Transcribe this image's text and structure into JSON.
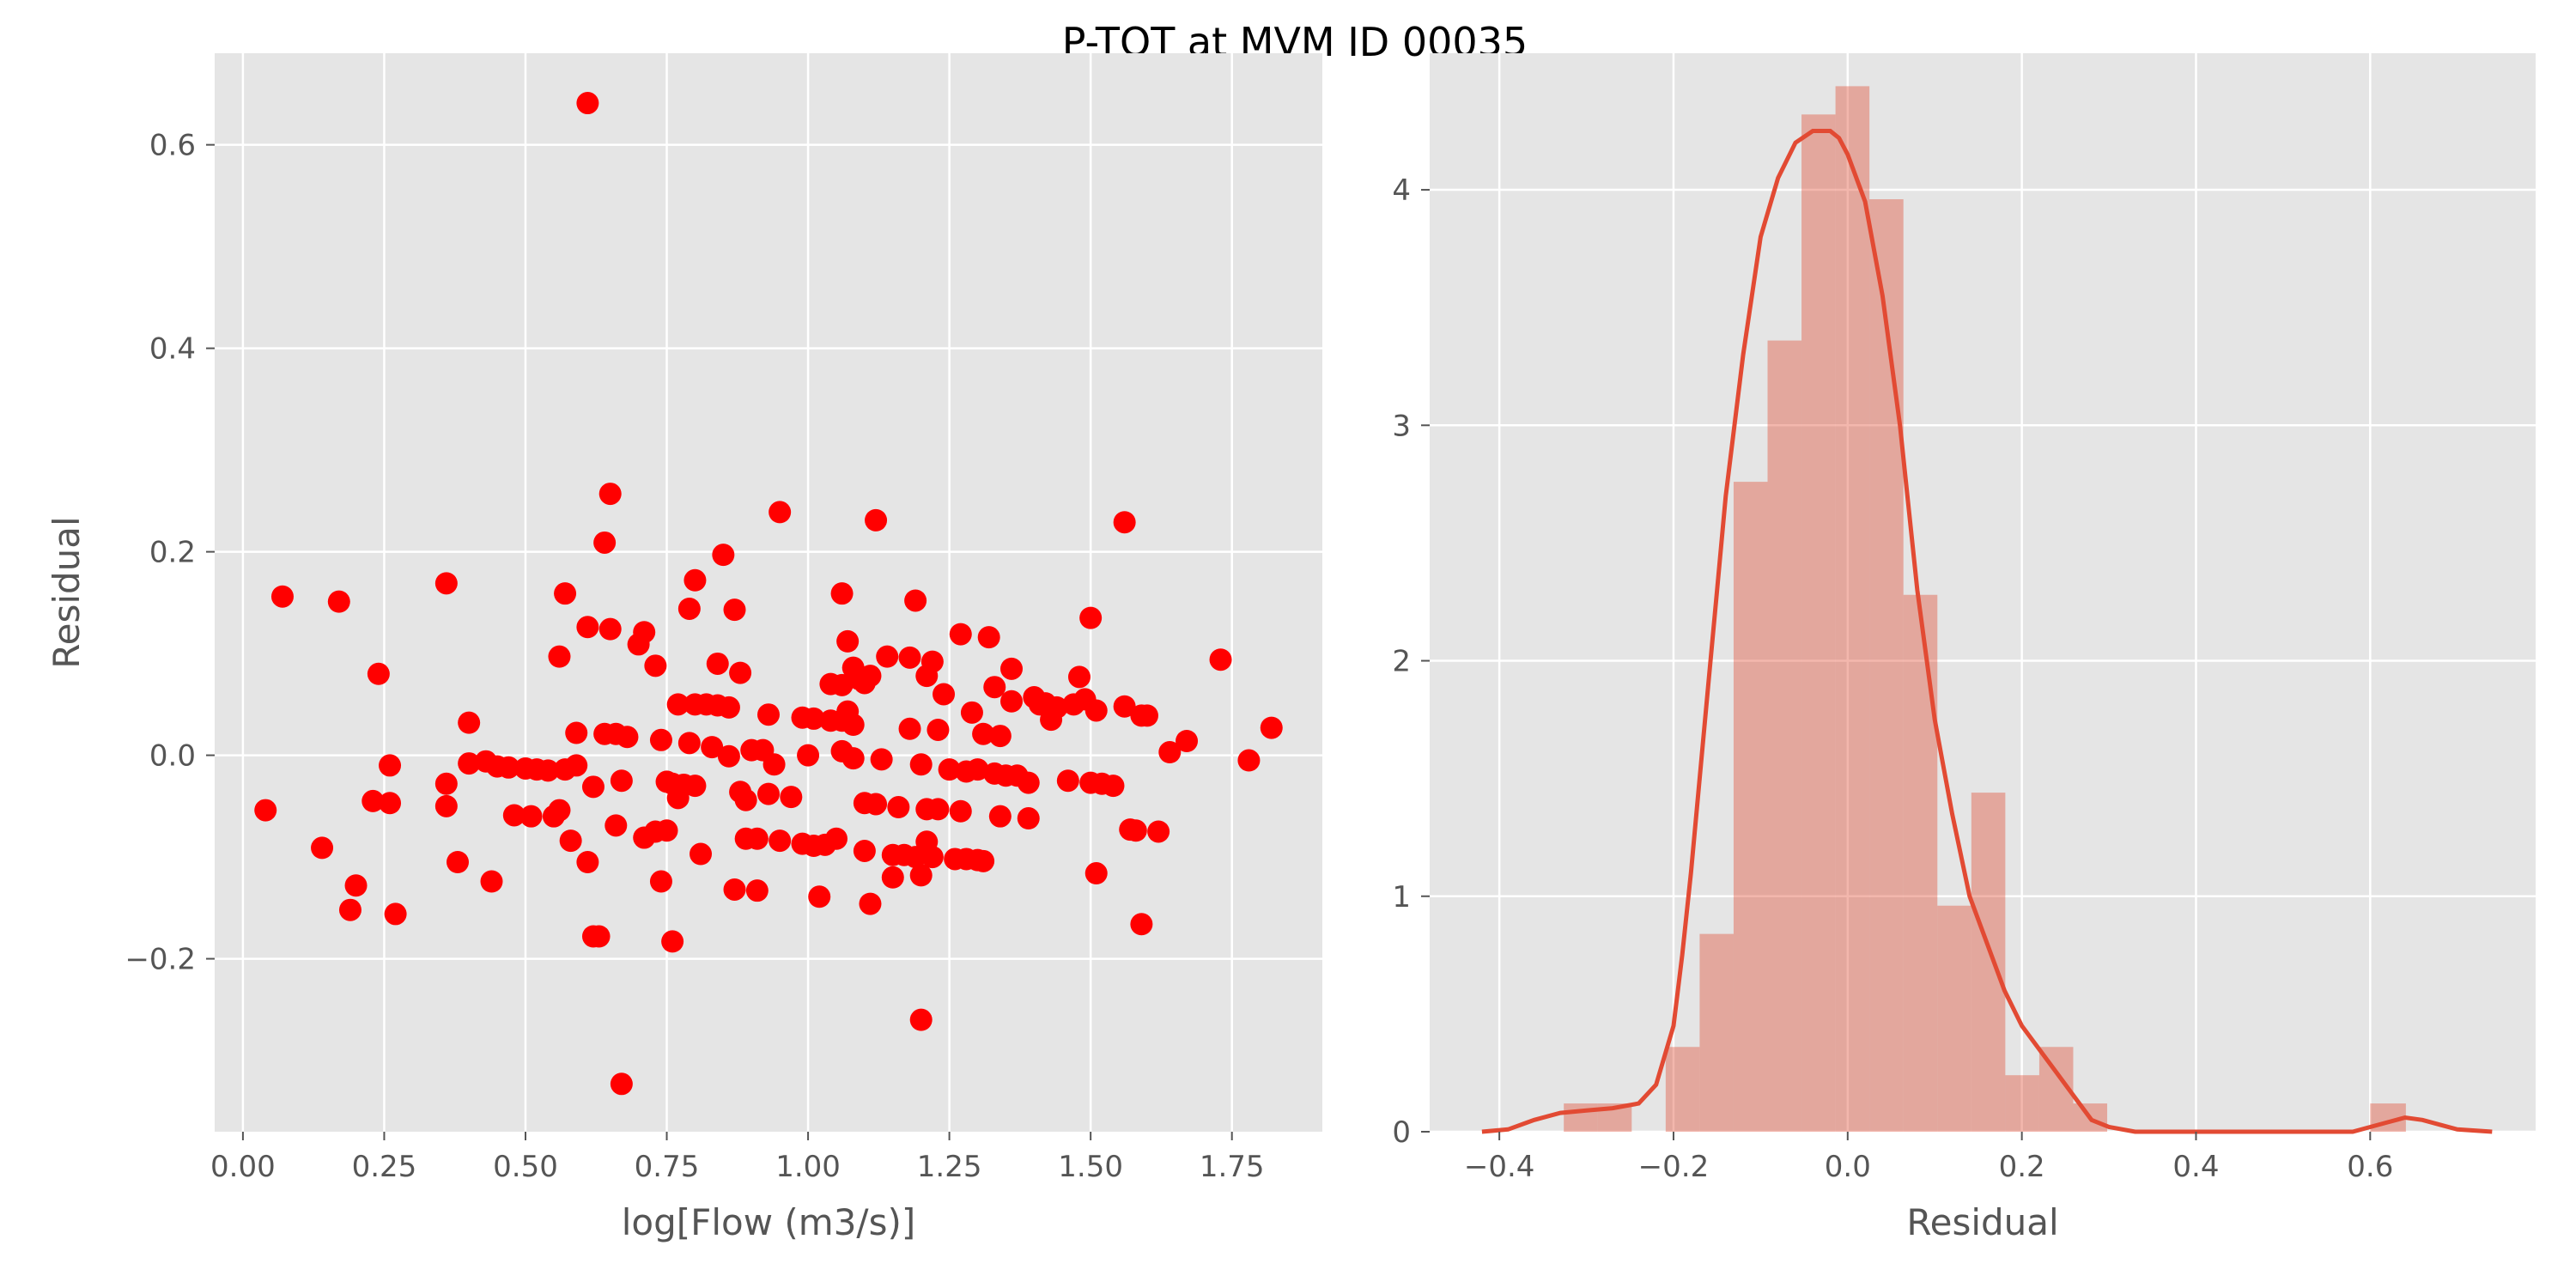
{
  "figure": {
    "title": "P-TOT at MVM ID 00035",
    "colors": {
      "panel_bg": "#E5E5E5",
      "grid": "#FFFFFF",
      "scatter_point": "#FF0000",
      "hist_bar": "#E24A33",
      "kde_line": "#E24A33"
    }
  },
  "chart_data": [
    {
      "type": "scatter",
      "title": "",
      "xlabel": "log[Flow (m3/s)]",
      "ylabel": "Residual",
      "xlim": [
        -0.05,
        1.91
      ],
      "ylim": [
        -0.37,
        0.69
      ],
      "xticks": [
        0.0,
        0.25,
        0.5,
        0.75,
        1.0,
        1.25,
        1.5,
        1.75
      ],
      "xtick_labels": [
        "0.00",
        "0.25",
        "0.50",
        "0.75",
        "1.00",
        "1.25",
        "1.50",
        "1.75"
      ],
      "yticks": [
        -0.2,
        0.0,
        0.2,
        0.4,
        0.6
      ],
      "ytick_labels": [
        "−0.2",
        "0.0",
        "0.2",
        "0.4",
        "0.6"
      ],
      "grid": true,
      "points": [
        {
          "x": 0.04,
          "y": -0.054
        },
        {
          "x": 0.07,
          "y": 0.156
        },
        {
          "x": 0.14,
          "y": -0.091
        },
        {
          "x": 0.17,
          "y": 0.151
        },
        {
          "x": 0.19,
          "y": -0.152
        },
        {
          "x": 0.2,
          "y": -0.128
        },
        {
          "x": 0.23,
          "y": -0.045
        },
        {
          "x": 0.24,
          "y": 0.08
        },
        {
          "x": 0.26,
          "y": -0.01
        },
        {
          "x": 0.26,
          "y": -0.047
        },
        {
          "x": 0.27,
          "y": -0.156
        },
        {
          "x": 0.36,
          "y": -0.028
        },
        {
          "x": 0.36,
          "y": -0.05
        },
        {
          "x": 0.36,
          "y": 0.169
        },
        {
          "x": 0.38,
          "y": -0.105
        },
        {
          "x": 0.4,
          "y": -0.008
        },
        {
          "x": 0.4,
          "y": 0.032
        },
        {
          "x": 0.43,
          "y": -0.006
        },
        {
          "x": 0.44,
          "y": -0.124
        },
        {
          "x": 0.45,
          "y": -0.011
        },
        {
          "x": 0.47,
          "y": -0.012
        },
        {
          "x": 0.48,
          "y": -0.059
        },
        {
          "x": 0.5,
          "y": -0.013
        },
        {
          "x": 0.51,
          "y": -0.06
        },
        {
          "x": 0.52,
          "y": -0.014
        },
        {
          "x": 0.54,
          "y": -0.015
        },
        {
          "x": 0.55,
          "y": -0.06
        },
        {
          "x": 0.56,
          "y": 0.097
        },
        {
          "x": 0.56,
          "y": -0.054
        },
        {
          "x": 0.57,
          "y": -0.014
        },
        {
          "x": 0.57,
          "y": 0.159
        },
        {
          "x": 0.58,
          "y": -0.084
        },
        {
          "x": 0.59,
          "y": -0.01
        },
        {
          "x": 0.59,
          "y": 0.022
        },
        {
          "x": 0.61,
          "y": -0.105
        },
        {
          "x": 0.61,
          "y": 0.126
        },
        {
          "x": 0.61,
          "y": 0.641
        },
        {
          "x": 0.62,
          "y": -0.178
        },
        {
          "x": 0.62,
          "y": -0.031
        },
        {
          "x": 0.63,
          "y": -0.178
        },
        {
          "x": 0.64,
          "y": 0.209
        },
        {
          "x": 0.64,
          "y": 0.021
        },
        {
          "x": 0.65,
          "y": 0.257
        },
        {
          "x": 0.65,
          "y": 0.124
        },
        {
          "x": 0.66,
          "y": 0.021
        },
        {
          "x": 0.66,
          "y": -0.069
        },
        {
          "x": 0.67,
          "y": -0.323
        },
        {
          "x": 0.67,
          "y": -0.025
        },
        {
          "x": 0.68,
          "y": 0.018
        },
        {
          "x": 0.7,
          "y": 0.109
        },
        {
          "x": 0.71,
          "y": 0.121
        },
        {
          "x": 0.71,
          "y": -0.081
        },
        {
          "x": 0.73,
          "y": 0.088
        },
        {
          "x": 0.73,
          "y": -0.075
        },
        {
          "x": 0.74,
          "y": -0.124
        },
        {
          "x": 0.74,
          "y": 0.015
        },
        {
          "x": 0.75,
          "y": -0.026
        },
        {
          "x": 0.75,
          "y": -0.074
        },
        {
          "x": 0.76,
          "y": -0.183
        },
        {
          "x": 0.76,
          "y": -0.028
        },
        {
          "x": 0.77,
          "y": 0.05
        },
        {
          "x": 0.77,
          "y": -0.042
        },
        {
          "x": 0.78,
          "y": -0.029
        },
        {
          "x": 0.79,
          "y": 0.144
        },
        {
          "x": 0.79,
          "y": 0.012
        },
        {
          "x": 0.8,
          "y": 0.172
        },
        {
          "x": 0.8,
          "y": 0.05
        },
        {
          "x": 0.8,
          "y": -0.03
        },
        {
          "x": 0.81,
          "y": -0.097
        },
        {
          "x": 0.82,
          "y": 0.05
        },
        {
          "x": 0.83,
          "y": 0.008
        },
        {
          "x": 0.84,
          "y": 0.049
        },
        {
          "x": 0.84,
          "y": 0.09
        },
        {
          "x": 0.85,
          "y": 0.197
        },
        {
          "x": 0.86,
          "y": 0.047
        },
        {
          "x": 0.86,
          "y": -0.001
        },
        {
          "x": 0.87,
          "y": 0.143
        },
        {
          "x": 0.87,
          "y": -0.132
        },
        {
          "x": 0.88,
          "y": 0.081
        },
        {
          "x": 0.88,
          "y": -0.036
        },
        {
          "x": 0.89,
          "y": -0.082
        },
        {
          "x": 0.89,
          "y": -0.044
        },
        {
          "x": 0.9,
          "y": 0.005
        },
        {
          "x": 0.91,
          "y": -0.133
        },
        {
          "x": 0.91,
          "y": -0.082
        },
        {
          "x": 0.92,
          "y": 0.005
        },
        {
          "x": 0.93,
          "y": 0.04
        },
        {
          "x": 0.93,
          "y": -0.038
        },
        {
          "x": 0.94,
          "y": -0.009
        },
        {
          "x": 0.95,
          "y": 0.239
        },
        {
          "x": 0.95,
          "y": -0.084
        },
        {
          "x": 0.97,
          "y": -0.041
        },
        {
          "x": 0.99,
          "y": 0.037
        },
        {
          "x": 0.99,
          "y": -0.087
        },
        {
          "x": 1.0,
          "y": 0.0
        },
        {
          "x": 1.01,
          "y": 0.036
        },
        {
          "x": 1.01,
          "y": -0.089
        },
        {
          "x": 1.02,
          "y": -0.139
        },
        {
          "x": 1.03,
          "y": -0.088
        },
        {
          "x": 1.04,
          "y": 0.07
        },
        {
          "x": 1.04,
          "y": 0.034
        },
        {
          "x": 1.05,
          "y": -0.082
        },
        {
          "x": 1.06,
          "y": 0.069
        },
        {
          "x": 1.06,
          "y": 0.159
        },
        {
          "x": 1.06,
          "y": 0.034
        },
        {
          "x": 1.06,
          "y": 0.004
        },
        {
          "x": 1.07,
          "y": 0.112
        },
        {
          "x": 1.07,
          "y": 0.043
        },
        {
          "x": 1.08,
          "y": 0.086
        },
        {
          "x": 1.08,
          "y": 0.03
        },
        {
          "x": 1.08,
          "y": -0.003
        },
        {
          "x": 1.09,
          "y": 0.075
        },
        {
          "x": 1.1,
          "y": -0.047
        },
        {
          "x": 1.1,
          "y": -0.094
        },
        {
          "x": 1.1,
          "y": 0.071
        },
        {
          "x": 1.11,
          "y": 0.078
        },
        {
          "x": 1.11,
          "y": -0.146
        },
        {
          "x": 1.12,
          "y": 0.231
        },
        {
          "x": 1.12,
          "y": -0.048
        },
        {
          "x": 1.13,
          "y": -0.004
        },
        {
          "x": 1.14,
          "y": 0.097
        },
        {
          "x": 1.15,
          "y": -0.098
        },
        {
          "x": 1.15,
          "y": -0.12
        },
        {
          "x": 1.16,
          "y": -0.051
        },
        {
          "x": 1.17,
          "y": -0.098
        },
        {
          "x": 1.18,
          "y": 0.026
        },
        {
          "x": 1.18,
          "y": 0.096
        },
        {
          "x": 1.19,
          "y": -0.1
        },
        {
          "x": 1.19,
          "y": 0.152
        },
        {
          "x": 1.2,
          "y": -0.26
        },
        {
          "x": 1.2,
          "y": -0.118
        },
        {
          "x": 1.2,
          "y": -0.009
        },
        {
          "x": 1.21,
          "y": 0.078
        },
        {
          "x": 1.21,
          "y": -0.085
        },
        {
          "x": 1.21,
          "y": -0.053
        },
        {
          "x": 1.22,
          "y": 0.092
        },
        {
          "x": 1.22,
          "y": -0.1
        },
        {
          "x": 1.23,
          "y": -0.053
        },
        {
          "x": 1.23,
          "y": 0.025
        },
        {
          "x": 1.24,
          "y": 0.06
        },
        {
          "x": 1.25,
          "y": -0.014
        },
        {
          "x": 1.26,
          "y": -0.102
        },
        {
          "x": 1.27,
          "y": -0.055
        },
        {
          "x": 1.27,
          "y": 0.119
        },
        {
          "x": 1.28,
          "y": -0.016
        },
        {
          "x": 1.28,
          "y": -0.102
        },
        {
          "x": 1.29,
          "y": 0.042
        },
        {
          "x": 1.3,
          "y": -0.103
        },
        {
          "x": 1.3,
          "y": -0.014
        },
        {
          "x": 1.31,
          "y": -0.104
        },
        {
          "x": 1.31,
          "y": 0.021
        },
        {
          "x": 1.32,
          "y": 0.116
        },
        {
          "x": 1.33,
          "y": 0.067
        },
        {
          "x": 1.33,
          "y": -0.018
        },
        {
          "x": 1.34,
          "y": -0.06
        },
        {
          "x": 1.34,
          "y": 0.019
        },
        {
          "x": 1.35,
          "y": -0.02
        },
        {
          "x": 1.36,
          "y": 0.053
        },
        {
          "x": 1.36,
          "y": 0.085
        },
        {
          "x": 1.37,
          "y": -0.02
        },
        {
          "x": 1.39,
          "y": -0.062
        },
        {
          "x": 1.39,
          "y": -0.027
        },
        {
          "x": 1.4,
          "y": 0.057
        },
        {
          "x": 1.41,
          "y": 0.05
        },
        {
          "x": 1.42,
          "y": 0.051
        },
        {
          "x": 1.43,
          "y": 0.035
        },
        {
          "x": 1.44,
          "y": 0.047
        },
        {
          "x": 1.46,
          "y": -0.025
        },
        {
          "x": 1.47,
          "y": 0.05
        },
        {
          "x": 1.48,
          "y": 0.077
        },
        {
          "x": 1.49,
          "y": 0.055
        },
        {
          "x": 1.5,
          "y": -0.027
        },
        {
          "x": 1.5,
          "y": 0.135
        },
        {
          "x": 1.51,
          "y": 0.044
        },
        {
          "x": 1.51,
          "y": -0.116
        },
        {
          "x": 1.52,
          "y": -0.028
        },
        {
          "x": 1.54,
          "y": -0.03
        },
        {
          "x": 1.56,
          "y": 0.048
        },
        {
          "x": 1.56,
          "y": 0.229
        },
        {
          "x": 1.57,
          "y": -0.073
        },
        {
          "x": 1.58,
          "y": -0.074
        },
        {
          "x": 1.59,
          "y": 0.039
        },
        {
          "x": 1.59,
          "y": -0.166
        },
        {
          "x": 1.6,
          "y": 0.039
        },
        {
          "x": 1.62,
          "y": -0.075
        },
        {
          "x": 1.64,
          "y": 0.003
        },
        {
          "x": 1.67,
          "y": 0.014
        },
        {
          "x": 1.73,
          "y": 0.094
        },
        {
          "x": 1.78,
          "y": -0.005
        },
        {
          "x": 1.82,
          "y": 0.027
        }
      ]
    },
    {
      "type": "histogram",
      "title": "",
      "xlabel": "Residual",
      "ylabel": "",
      "xlim": [
        -0.48,
        0.79
      ],
      "ylim": [
        0,
        4.58
      ],
      "xticks": [
        -0.4,
        -0.2,
        0.0,
        0.2,
        0.4,
        0.6
      ],
      "xtick_labels": [
        "−0.4",
        "−0.2",
        "0.0",
        "0.2",
        "0.4",
        "0.6"
      ],
      "yticks": [
        0,
        1,
        2,
        3,
        4
      ],
      "ytick_labels": [
        "0",
        "1",
        "2",
        "3",
        "4"
      ],
      "grid": true,
      "bins": [
        {
          "x0": -0.326,
          "x1": -0.287,
          "density": 0.12
        },
        {
          "x0": -0.287,
          "x1": -0.248,
          "density": 0.12
        },
        {
          "x0": -0.248,
          "x1": -0.209,
          "density": 0.0
        },
        {
          "x0": -0.209,
          "x1": -0.17,
          "density": 0.36
        },
        {
          "x0": -0.17,
          "x1": -0.131,
          "density": 0.84
        },
        {
          "x0": -0.131,
          "x1": -0.092,
          "density": 2.76
        },
        {
          "x0": -0.092,
          "x1": -0.053,
          "density": 3.36
        },
        {
          "x0": -0.053,
          "x1": -0.014,
          "density": 4.32
        },
        {
          "x0": -0.014,
          "x1": 0.025,
          "density": 4.44
        },
        {
          "x0": 0.025,
          "x1": 0.064,
          "density": 3.96
        },
        {
          "x0": 0.064,
          "x1": 0.103,
          "density": 2.28
        },
        {
          "x0": 0.103,
          "x1": 0.142,
          "density": 0.96
        },
        {
          "x0": 0.142,
          "x1": 0.181,
          "density": 1.44
        },
        {
          "x0": 0.181,
          "x1": 0.22,
          "density": 0.24
        },
        {
          "x0": 0.22,
          "x1": 0.259,
          "density": 0.36
        },
        {
          "x0": 0.259,
          "x1": 0.298,
          "density": 0.12
        },
        {
          "x0": 0.298,
          "x1": 0.6,
          "density": 0.0
        },
        {
          "x0": 0.6,
          "x1": 0.641,
          "density": 0.12
        }
      ],
      "kde": {
        "x": [
          -0.42,
          -0.39,
          -0.36,
          -0.33,
          -0.3,
          -0.27,
          -0.24,
          -0.22,
          -0.2,
          -0.19,
          -0.18,
          -0.17,
          -0.16,
          -0.15,
          -0.14,
          -0.12,
          -0.1,
          -0.08,
          -0.06,
          -0.04,
          -0.02,
          -0.01,
          0.0,
          0.02,
          0.04,
          0.06,
          0.08,
          0.1,
          0.12,
          0.14,
          0.16,
          0.18,
          0.2,
          0.22,
          0.24,
          0.26,
          0.28,
          0.3,
          0.33,
          0.36,
          0.4,
          0.45,
          0.5,
          0.55,
          0.58,
          0.6,
          0.62,
          0.64,
          0.66,
          0.68,
          0.7,
          0.74
        ],
        "y": [
          0.0,
          0.01,
          0.05,
          0.08,
          0.09,
          0.1,
          0.12,
          0.2,
          0.45,
          0.75,
          1.1,
          1.5,
          1.9,
          2.3,
          2.7,
          3.3,
          3.8,
          4.05,
          4.2,
          4.25,
          4.25,
          4.22,
          4.15,
          3.95,
          3.55,
          3.0,
          2.3,
          1.75,
          1.35,
          1.0,
          0.8,
          0.6,
          0.45,
          0.35,
          0.25,
          0.15,
          0.05,
          0.02,
          0.0,
          0.0,
          0.0,
          0.0,
          0.0,
          0.0,
          0.0,
          0.02,
          0.04,
          0.06,
          0.05,
          0.03,
          0.01,
          0.0
        ]
      }
    }
  ]
}
